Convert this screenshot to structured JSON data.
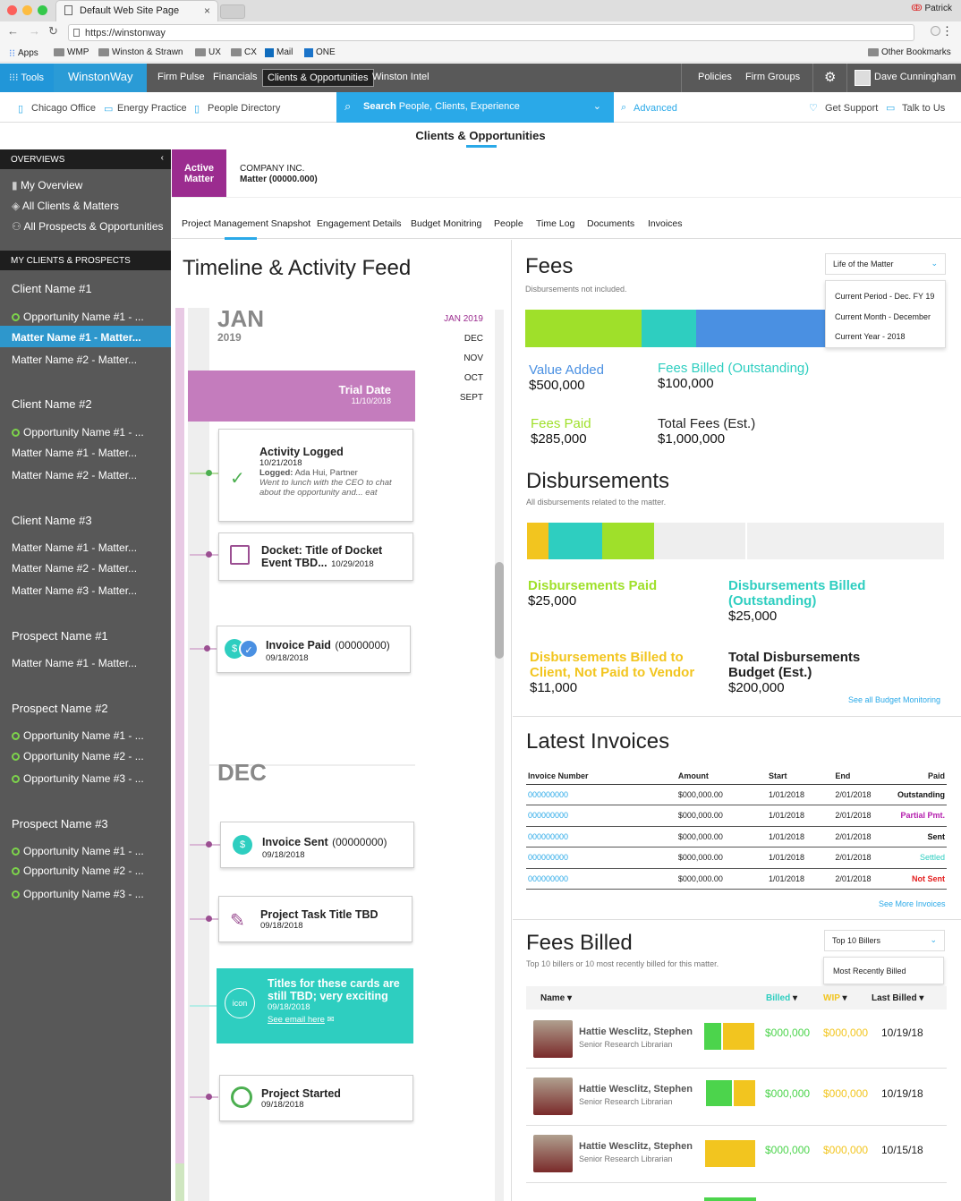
{
  "browser": {
    "tab_title": "Default Web Site Page",
    "tab_close": "×",
    "user": "Patrick",
    "url": "https://winstonway",
    "bookmarks": [
      "Apps",
      "WMP",
      "Winston & Strawn",
      "UX",
      "CX",
      "Mail",
      "ONE"
    ],
    "other_bookmarks": "Other Bookmarks",
    "colors": {
      "close": "#fc605b",
      "min": "#fdbc40",
      "max": "#34c84a"
    }
  },
  "nav": {
    "tools": "Tools",
    "brand": "WinstonWay",
    "items": [
      "Firm Pulse",
      "Financials",
      "Clients & Opportunities",
      "Winston Intel"
    ],
    "right_items": [
      "Policies",
      "Firm Groups"
    ],
    "user": "Dave Cunningham",
    "accent": "#2aa9e8"
  },
  "subnav": {
    "links": [
      "Chicago Office",
      "Energy Practice",
      "People Directory"
    ],
    "search_label": "Search",
    "search_placeholder": "People, Clients, Experience",
    "advanced": "Advanced",
    "support": "Get Support",
    "talk": "Talk to Us"
  },
  "page_title": "Clients & Opportunities",
  "sidebar": {
    "overviews_header": "OVERVIEWS",
    "overviews": [
      "My Overview",
      "All Clients & Matters",
      "All Prospects & Opportunities"
    ],
    "my_header": "MY CLIENTS & PROSPECTS",
    "groups": [
      {
        "title": "Client Name #1",
        "items": [
          "Opportunity Name #1 - ...",
          "Matter Name #1 - Matter...",
          "Matter Name #2 - Matter..."
        ]
      },
      {
        "title": "Client Name #2",
        "items": [
          "Opportunity Name #1 - ...",
          "Matter Name #1 - Matter...",
          "Matter Name #2 - Matter..."
        ]
      },
      {
        "title": "Client Name #3",
        "items": [
          "Matter Name #1 - Matter...",
          "Matter Name #2 - Matter...",
          "Matter Name #3 - Matter..."
        ]
      },
      {
        "title": "Prospect Name #1",
        "items": [
          "Matter Name #1 - Matter..."
        ]
      },
      {
        "title": "Prospect Name #2",
        "items": [
          "Opportunity Name #1 - ...",
          "Opportunity Name #2 - ...",
          "Opportunity Name #3 - ..."
        ]
      },
      {
        "title": "Prospect Name #3",
        "items": [
          "Opportunity Name #1 - ...",
          "Opportunity Name #2 - ...",
          "Opportunity Name #3 - ..."
        ]
      }
    ]
  },
  "matter": {
    "badge_line1": "Active",
    "badge_line2": "Matter",
    "company": "COMPANY INC.",
    "matter": "Matter (00000.000)",
    "tabs": [
      "Project Management Snapshot",
      "Engagement Details",
      "Budget Monitring",
      "People",
      "Time Log",
      "Documents",
      "Invoices"
    ]
  },
  "timeline": {
    "title": "Timeline & Activity Feed",
    "jan": "JAN",
    "jan_year": "2019",
    "dec": "DEC",
    "months": [
      "JAN 2019",
      "DEC",
      "NOV",
      "OCT",
      "SEPT"
    ],
    "trial_title": "Trial Date",
    "trial_date": "11/10/2018",
    "cards": [
      {
        "title": "Activity Logged",
        "date": "10/21/2018",
        "logged_label": "Logged:",
        "logged_by": "Ada Hui, Partner",
        "note": "Went to lunch with the CEO to chat about the opportunity and... eat"
      },
      {
        "title": "Docket: Title of Docket Event TBD...",
        "date": "10/29/2018"
      },
      {
        "title": "Invoice Paid",
        "number": "(00000000)",
        "date": "09/18/2018"
      },
      {
        "title": "Invoice Sent",
        "number": "(00000000)",
        "date": "09/18/2018"
      },
      {
        "title": "Project Task Title TBD",
        "date": "09/18/2018"
      },
      {
        "title": "Titles for these cards are still TBD; very exciting",
        "date": "09/18/2018",
        "link": "See email here",
        "icon": "icon"
      },
      {
        "title": "Project Started",
        "date": "09/18/2018"
      }
    ]
  },
  "fees": {
    "title": "Fees",
    "subtitle": "Disbursements not included.",
    "dropdown": "Life of the Matter",
    "options": [
      "Current Period - Dec. FY 19",
      "Current Month - December",
      "Current Year - 2018"
    ],
    "value_added_label": "Value Added",
    "value_added": "$500,000",
    "billed_label": "Fees Billed (Outstanding)",
    "billed": "$100,000",
    "paid_label": "Fees Paid",
    "paid": "$285,000",
    "total_label": "Total Fees (Est.)",
    "total": "$1,000,000"
  },
  "disb": {
    "title": "Disbursements",
    "subtitle": "All disbursements related to the matter.",
    "paid_label": "Disbursements Paid",
    "paid": "$25,000",
    "billed_label": "Disbursements Billed (Outstanding)",
    "billed": "$25,000",
    "client_label": "Disbursements Billed to Client, Not Paid to Vendor",
    "client": "$11,000",
    "budget_label": "Total Disbursements Budget (Est.)",
    "budget": "$200,000",
    "link": "See all Budget Monitoring"
  },
  "invoices": {
    "title": "Latest Invoices",
    "headers": [
      "Invoice Number",
      "Amount",
      "Start",
      "End",
      "Paid"
    ],
    "rows": [
      {
        "num": "000000000",
        "amount": "$000,000.00",
        "start": "1/01/2018",
        "end": "2/01/2018",
        "status": "Outstanding",
        "color": "#111111"
      },
      {
        "num": "000000000",
        "amount": "$000,000.00",
        "start": "1/01/2018",
        "end": "2/01/2018",
        "status": "Partial Pmt.",
        "color": "#b51fae"
      },
      {
        "num": "000000000",
        "amount": "$000,000.00",
        "start": "1/01/2018",
        "end": "2/01/2018",
        "status": "Sent",
        "color": "#111111"
      },
      {
        "num": "000000000",
        "amount": "$000,000.00",
        "start": "1/01/2018",
        "end": "2/01/2018",
        "status": "Settled",
        "color": "#2ecec0"
      },
      {
        "num": "000000000",
        "amount": "$000,000.00",
        "start": "1/01/2018",
        "end": "2/01/2018",
        "status": "Not Sent",
        "color": "#e42020"
      }
    ],
    "more": "See More Invoices"
  },
  "fees_billed": {
    "title": "Fees Billed",
    "subtitle": "Top 10 billers or 10 most recently billed for this matter.",
    "dropdown": "Top 10 Billers",
    "option": "Most Recently Billed",
    "col_name": "Name",
    "col_billed": "Billed",
    "col_wip": "WIP",
    "col_last": "Last Billed",
    "billers": [
      {
        "name": "Hattie Wesclitz, Stephen",
        "role": "Senior Research Librarian",
        "billed": "$000,000",
        "wip": "$000,000",
        "last": "10/19/18"
      },
      {
        "name": "Hattie Wesclitz, Stephen",
        "role": "Senior Research Librarian",
        "billed": "$000,000",
        "wip": "$000,000",
        "last": "10/19/18"
      },
      {
        "name": "Hattie Wesclitz, Stephen",
        "role": "Senior Research Librarian",
        "billed": "$000,000",
        "wip": "$000,000",
        "last": "10/15/18"
      }
    ]
  },
  "colors": {
    "green": "#9fe02a",
    "teal": "#2ecec0",
    "blue": "#4a90e2",
    "yellow": "#f2c51f",
    "purple": "#9b2c8f"
  }
}
